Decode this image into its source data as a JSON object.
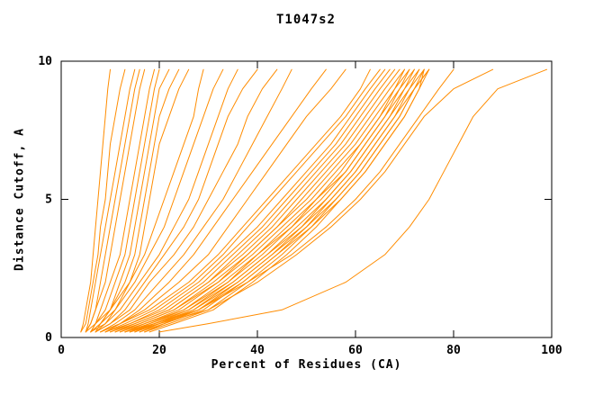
{
  "chart_data": {
    "type": "line",
    "title": "T1047s2",
    "xlabel": "Percent of Residues (CA)",
    "ylabel": "Distance Cutoff, A",
    "xlim": [
      0,
      100
    ],
    "ylim": [
      0,
      10
    ],
    "x_ticks": [
      0,
      20,
      40,
      60,
      80,
      100
    ],
    "y_ticks": [
      0,
      5,
      10
    ],
    "grid": false,
    "legend": "none",
    "line_color": "#ff8c00",
    "axis_color": "#000000",
    "y_levels": [
      0.2,
      0.5,
      1,
      2,
      3,
      4,
      5,
      6,
      7,
      8,
      9,
      9.7
    ],
    "series": [
      {
        "x": [
          4,
          4.5,
          5,
          6,
          6.5,
          7,
          7.5,
          8,
          8.5,
          9,
          9.5,
          10
        ]
      },
      {
        "x": [
          4,
          5,
          5.5,
          6.5,
          7.5,
          8,
          9,
          9.5,
          10,
          11,
          12,
          13
        ]
      },
      {
        "x": [
          5,
          5.5,
          6,
          7,
          8,
          9,
          10,
          11,
          12,
          13,
          14,
          15
        ]
      },
      {
        "x": [
          5,
          6,
          7,
          8,
          9,
          10,
          11,
          12,
          13,
          14,
          15,
          16
        ]
      },
      {
        "x": [
          5,
          6,
          7,
          9,
          10,
          11,
          12,
          13,
          14,
          15,
          16,
          17
        ]
      },
      {
        "x": [
          6,
          7,
          8,
          10,
          12,
          13,
          14,
          15,
          16,
          17,
          18,
          19
        ]
      },
      {
        "x": [
          6,
          7,
          9,
          11,
          13,
          14,
          15,
          16,
          17,
          18,
          19,
          20
        ]
      },
      {
        "x": [
          6,
          8,
          10,
          12,
          14,
          15,
          16,
          17,
          18,
          19,
          20,
          22
        ]
      },
      {
        "x": [
          7,
          8,
          10,
          13,
          15,
          16,
          17,
          18,
          19,
          20,
          22,
          24
        ]
      },
      {
        "x": [
          7,
          9,
          11,
          14,
          16,
          17,
          18,
          19,
          20,
          22,
          24,
          26
        ]
      },
      {
        "x": [
          5,
          7,
          10,
          14,
          17,
          19,
          21,
          23,
          25,
          27,
          28,
          29
        ]
      },
      {
        "x": [
          6,
          8,
          11,
          15,
          18,
          21,
          23,
          25,
          27,
          29,
          31,
          33
        ]
      },
      {
        "x": [
          6,
          9,
          12,
          16,
          20,
          23,
          26,
          28,
          30,
          32,
          34,
          36
        ]
      },
      {
        "x": [
          7,
          10,
          13,
          17,
          21,
          25,
          28,
          30,
          32,
          34,
          37,
          40
        ]
      },
      {
        "x": [
          7,
          10,
          14,
          18,
          23,
          27,
          30,
          33,
          36,
          38,
          41,
          44
        ]
      },
      {
        "x": [
          8,
          11,
          15,
          20,
          25,
          29,
          33,
          36,
          39,
          42,
          45,
          47
        ]
      },
      {
        "x": [
          8,
          12,
          16,
          22,
          27,
          31,
          35,
          39,
          43,
          47,
          51,
          54
        ]
      },
      {
        "x": [
          9,
          12,
          17,
          24,
          30,
          34,
          38,
          42,
          46,
          50,
          55,
          58
        ]
      },
      {
        "x": [
          8,
          12,
          18,
          26,
          32,
          37,
          42,
          47,
          52,
          57,
          61,
          63
        ]
      },
      {
        "x": [
          9,
          13,
          19,
          27,
          33,
          38,
          43,
          48,
          53,
          58,
          62,
          65
        ]
      },
      {
        "x": [
          9,
          14,
          20,
          28,
          34,
          40,
          45,
          50,
          55,
          59,
          63,
          66
        ]
      },
      {
        "x": [
          10,
          14,
          21,
          29,
          35,
          41,
          46,
          51,
          56,
          60,
          64,
          67
        ]
      },
      {
        "x": [
          10,
          15,
          22,
          30,
          36,
          42,
          47,
          52,
          57,
          61,
          65,
          68
        ]
      },
      {
        "x": [
          11,
          15,
          22,
          30,
          37,
          43,
          48,
          53,
          58,
          62,
          66,
          69
        ]
      },
      {
        "x": [
          11,
          16,
          23,
          31,
          38,
          44,
          49,
          54,
          59,
          63,
          67,
          70
        ]
      },
      {
        "x": [
          12,
          16,
          23,
          32,
          38,
          44,
          50,
          55,
          60,
          64,
          68,
          70
        ]
      },
      {
        "x": [
          12,
          17,
          24,
          32,
          39,
          45,
          51,
          56,
          61,
          65,
          68,
          71
        ]
      },
      {
        "x": [
          13,
          17,
          25,
          33,
          40,
          46,
          52,
          57,
          61,
          65,
          69,
          71
        ]
      },
      {
        "x": [
          13,
          18,
          25,
          34,
          40,
          47,
          52,
          58,
          62,
          66,
          69,
          72
        ]
      },
      {
        "x": [
          14,
          18,
          26,
          34,
          41,
          47,
          53,
          58,
          62,
          66,
          70,
          72
        ]
      },
      {
        "x": [
          14,
          19,
          26,
          35,
          42,
          48,
          54,
          59,
          63,
          67,
          70,
          73
        ]
      },
      {
        "x": [
          15,
          19,
          27,
          35,
          42,
          49,
          54,
          59,
          63,
          67,
          71,
          73
        ]
      },
      {
        "x": [
          15,
          20,
          27,
          36,
          43,
          49,
          55,
          60,
          64,
          68,
          71,
          74
        ]
      },
      {
        "x": [
          16,
          20,
          28,
          36,
          43,
          50,
          55,
          60,
          64,
          68,
          72,
          74
        ]
      },
      {
        "x": [
          16,
          21,
          28,
          37,
          44,
          50,
          56,
          61,
          65,
          69,
          72,
          75
        ]
      },
      {
        "x": [
          17,
          21,
          29,
          37,
          44,
          51,
          56,
          61,
          65,
          69,
          72,
          75
        ]
      },
      {
        "x": [
          17,
          22,
          30,
          38,
          45,
          51,
          57,
          62,
          66,
          70,
          73,
          75
        ]
      },
      {
        "x": [
          18,
          23,
          31,
          39,
          46,
          52,
          57,
          62,
          66,
          70,
          73,
          74
        ]
      },
      {
        "x": [
          13,
          19,
          28,
          38,
          47,
          54,
          60,
          65,
          69,
          73,
          77,
          80
        ]
      },
      {
        "x": [
          14,
          20,
          30,
          40,
          48,
          55,
          61,
          66,
          70,
          74,
          80,
          88
        ]
      },
      {
        "x": [
          20,
          30,
          45,
          58,
          66,
          71,
          75,
          78,
          81,
          84,
          89,
          99
        ]
      }
    ]
  }
}
